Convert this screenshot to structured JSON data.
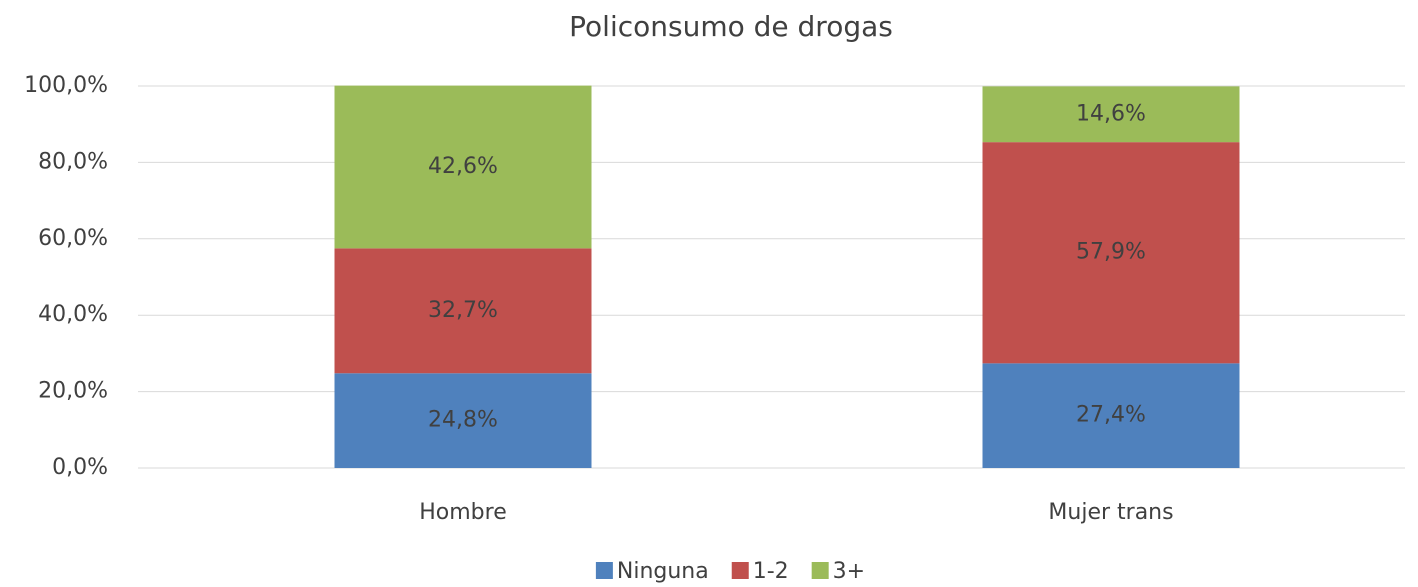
{
  "chart_data": {
    "type": "stacked_bar",
    "title": "Policonsumo de drogas",
    "categories": [
      "Hombre",
      "Mujer trans"
    ],
    "series": [
      {
        "name": "Ninguna",
        "color": "#4f81bd",
        "values": [
          24.8,
          27.4
        ],
        "value_labels": [
          "24,8%",
          "27,4%"
        ]
      },
      {
        "name": "1-2",
        "color": "#c0504d",
        "values": [
          32.7,
          57.9
        ],
        "value_labels": [
          "32,7%",
          "57,9%"
        ]
      },
      {
        "name": "3+",
        "color": "#9bbb59",
        "values": [
          42.6,
          14.6
        ],
        "value_labels": [
          "42,6%",
          "14,6%"
        ]
      }
    ],
    "ylim": [
      0,
      100
    ],
    "yticks": [
      {
        "value": 0,
        "label": "0,0%"
      },
      {
        "value": 20,
        "label": "20,0%"
      },
      {
        "value": 40,
        "label": "40,0%"
      },
      {
        "value": 60,
        "label": "60,0%"
      },
      {
        "value": 80,
        "label": "80,0%"
      },
      {
        "value": 100,
        "label": "100,0%"
      }
    ],
    "grid": true,
    "legend": "bottom"
  }
}
